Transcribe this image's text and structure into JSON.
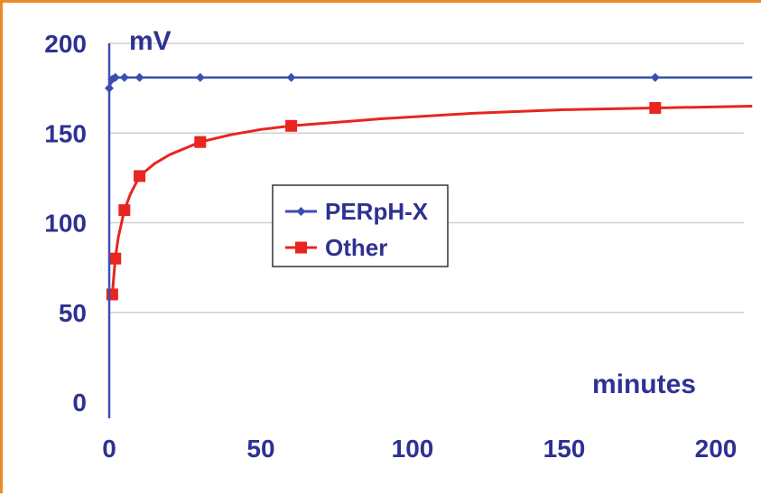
{
  "chart_data": {
    "type": "line",
    "xlabel": "minutes",
    "ylabel": "mV",
    "xlim": [
      0,
      212
    ],
    "ylim": [
      0,
      200
    ],
    "xticks": [
      0,
      50,
      100,
      150,
      200
    ],
    "yticks": [
      0,
      50,
      100,
      150,
      200
    ],
    "grid": "horizontal",
    "legend": "center",
    "series": [
      {
        "name": "PERpH-X",
        "color": "#3b4fb0",
        "marker": "diamond",
        "points": [
          [
            0,
            175
          ],
          [
            1,
            180
          ],
          [
            2,
            181
          ],
          [
            5,
            181
          ],
          [
            10,
            181
          ],
          [
            30,
            181
          ],
          [
            60,
            181
          ],
          [
            180,
            181
          ]
        ],
        "curve": [
          [
            0,
            175
          ],
          [
            1,
            180
          ],
          [
            2,
            181
          ],
          [
            212,
            181
          ]
        ]
      },
      {
        "name": "Other",
        "color": "#e8251f",
        "marker": "square",
        "points": [
          [
            1,
            60
          ],
          [
            2,
            80
          ],
          [
            5,
            107
          ],
          [
            10,
            126
          ],
          [
            30,
            145
          ],
          [
            60,
            154
          ],
          [
            180,
            164
          ]
        ],
        "curve": [
          [
            1,
            60
          ],
          [
            2,
            80
          ],
          [
            3,
            92
          ],
          [
            5,
            107
          ],
          [
            7,
            116
          ],
          [
            10,
            126
          ],
          [
            15,
            133
          ],
          [
            20,
            138
          ],
          [
            30,
            145
          ],
          [
            40,
            149
          ],
          [
            50,
            152
          ],
          [
            60,
            154
          ],
          [
            90,
            158
          ],
          [
            120,
            161
          ],
          [
            150,
            163
          ],
          [
            180,
            164
          ],
          [
            212,
            165
          ]
        ]
      }
    ]
  }
}
